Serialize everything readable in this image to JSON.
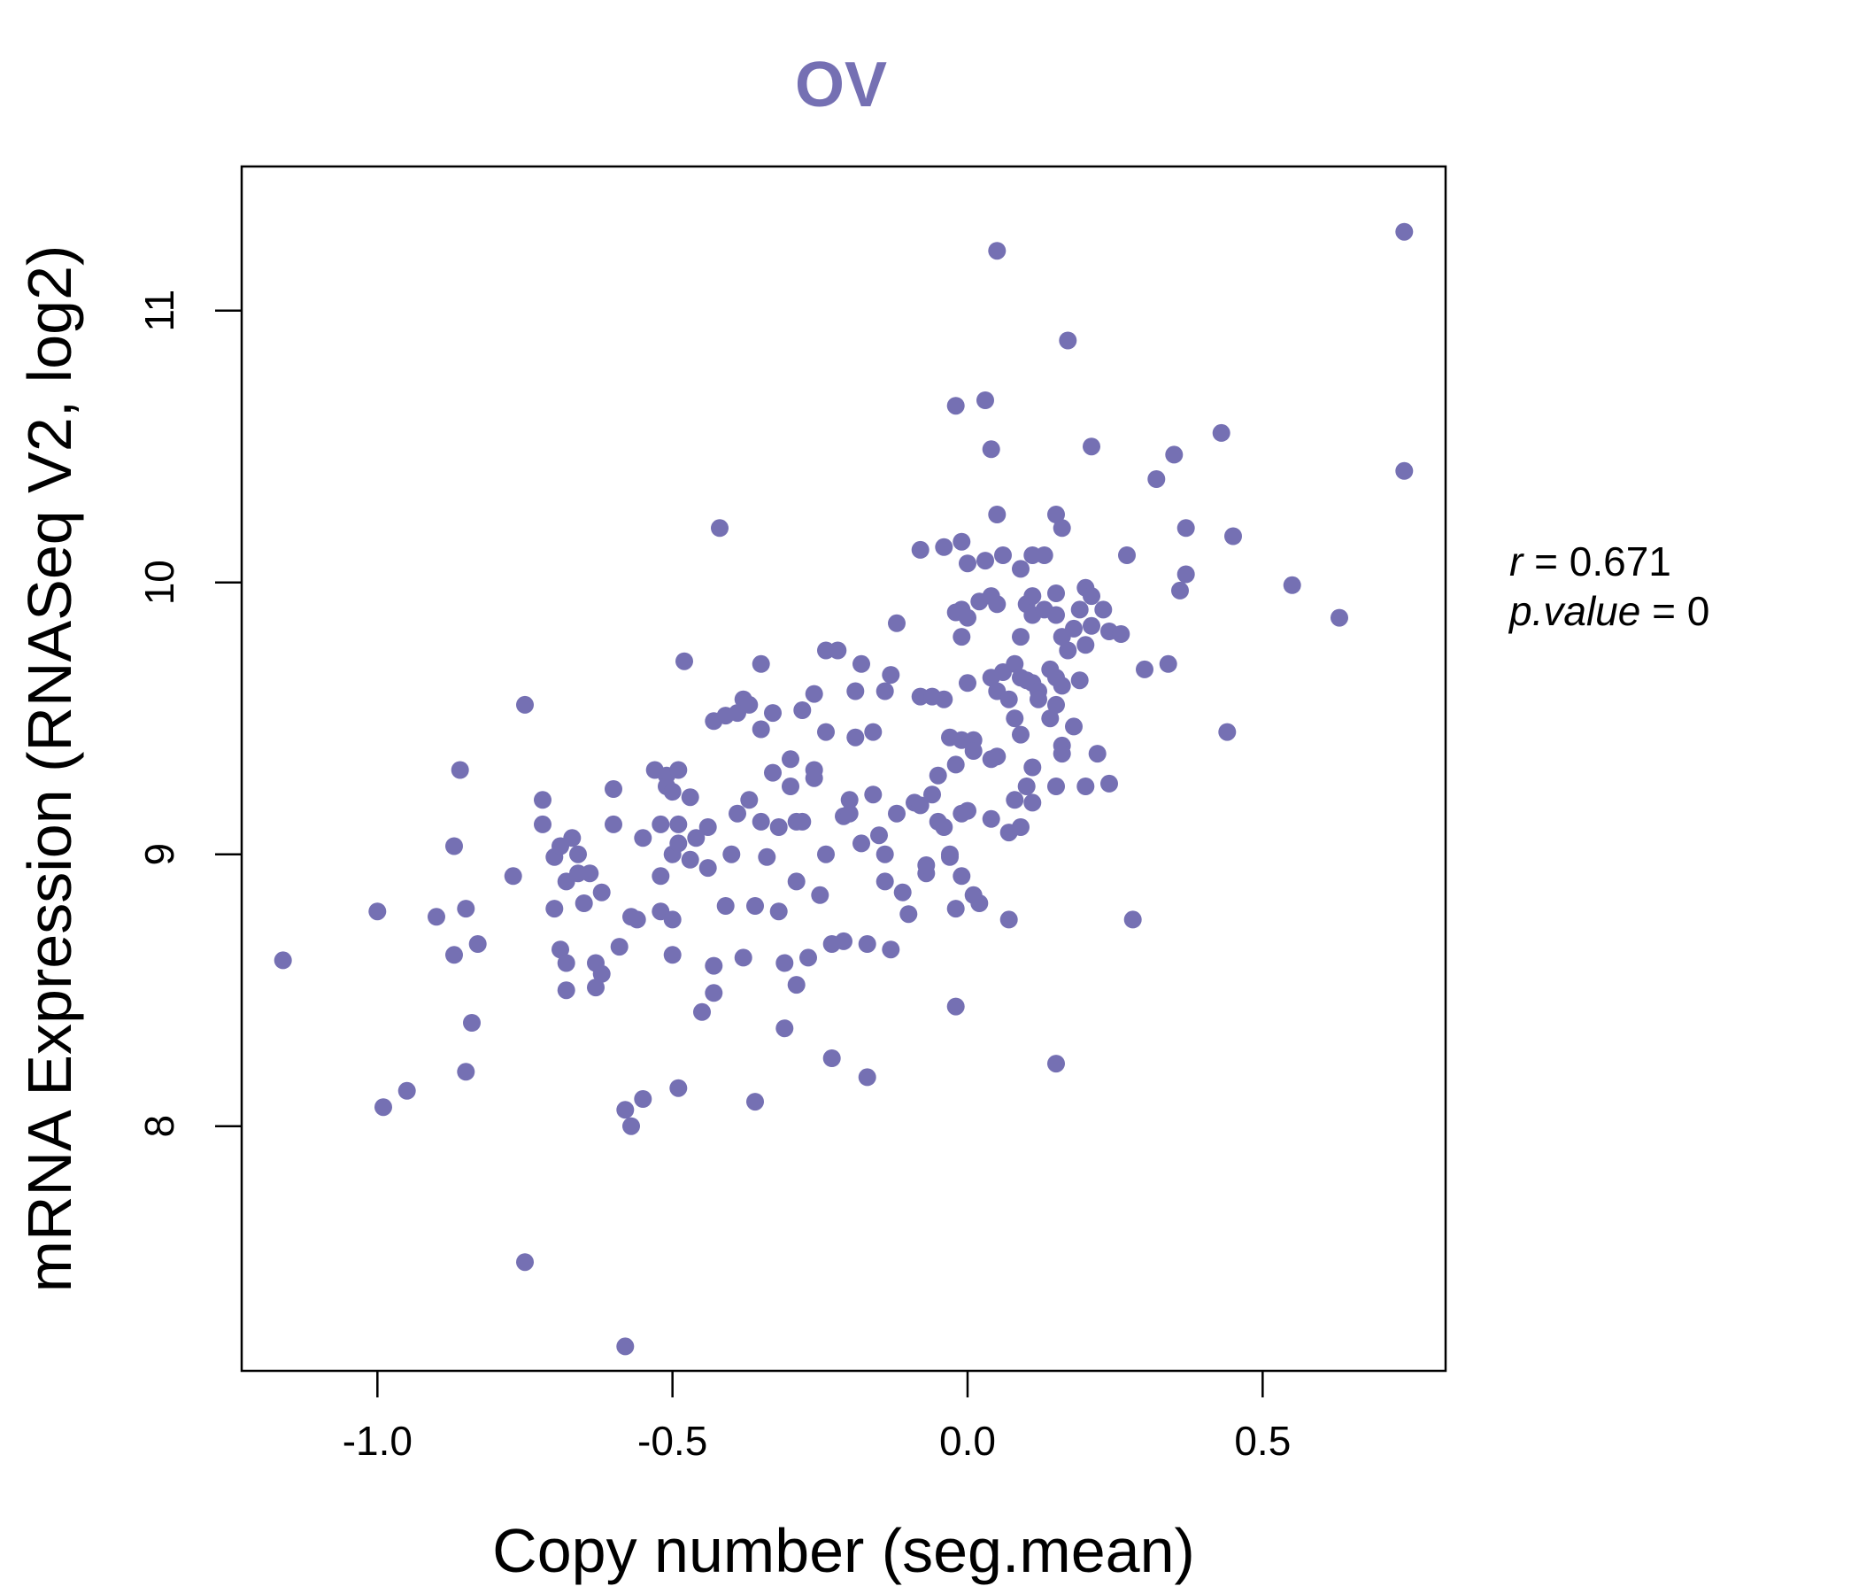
{
  "chart_data": {
    "type": "scatter",
    "title": "OV",
    "xlabel": "Copy number (seg.mean)",
    "ylabel": "mRNA Expression (RNASeq V2, log2)",
    "xlim": [
      -1.23,
      0.81
    ],
    "ylim": [
      7.1,
      11.53
    ],
    "x_ticks": [
      -1.0,
      -0.5,
      0.0,
      0.5
    ],
    "x_tick_labels": [
      "-1.0",
      "-0.5",
      "0.0",
      "0.5"
    ],
    "y_ticks": [
      8,
      9,
      10,
      11
    ],
    "y_tick_labels": [
      "8",
      "9",
      "10",
      "11"
    ],
    "grid": false,
    "legend": "none",
    "point_color": "#7570b3",
    "title_color": "#7570b3",
    "annotation": {
      "r_label": "r",
      "r_value": "0.671",
      "p_label": "p.value",
      "p_value": "0"
    },
    "points": [
      [
        -1.16,
        8.61
      ],
      [
        -1.0,
        8.79
      ],
      [
        -0.99,
        8.07
      ],
      [
        -0.95,
        8.13
      ],
      [
        -0.9,
        8.77
      ],
      [
        -0.87,
        9.03
      ],
      [
        -0.87,
        8.63
      ],
      [
        -0.86,
        9.31
      ],
      [
        -0.85,
        8.8
      ],
      [
        -0.85,
        8.2
      ],
      [
        -0.84,
        8.38
      ],
      [
        -0.83,
        8.67
      ],
      [
        -0.77,
        8.92
      ],
      [
        -0.75,
        9.55
      ],
      [
        -0.75,
        7.5
      ],
      [
        -0.72,
        9.2
      ],
      [
        -0.72,
        9.11
      ],
      [
        -0.7,
        8.99
      ],
      [
        -0.7,
        8.8
      ],
      [
        -0.69,
        9.03
      ],
      [
        -0.69,
        8.65
      ],
      [
        -0.68,
        8.9
      ],
      [
        -0.68,
        8.6
      ],
      [
        -0.68,
        8.5
      ],
      [
        -0.67,
        9.06
      ],
      [
        -0.66,
        9.0
      ],
      [
        -0.66,
        8.93
      ],
      [
        -0.65,
        8.82
      ],
      [
        -0.64,
        8.93
      ],
      [
        -0.63,
        8.6
      ],
      [
        -0.63,
        8.51
      ],
      [
        -0.62,
        8.86
      ],
      [
        -0.62,
        8.56
      ],
      [
        -0.6,
        9.24
      ],
      [
        -0.6,
        9.11
      ],
      [
        -0.59,
        8.66
      ],
      [
        -0.58,
        8.06
      ],
      [
        -0.58,
        7.19
      ],
      [
        -0.57,
        8.77
      ],
      [
        -0.57,
        8.0
      ],
      [
        -0.56,
        8.76
      ],
      [
        -0.55,
        9.06
      ],
      [
        -0.55,
        8.1
      ],
      [
        -0.53,
        9.31
      ],
      [
        -0.52,
        9.11
      ],
      [
        -0.52,
        8.92
      ],
      [
        -0.52,
        8.79
      ],
      [
        -0.51,
        9.29
      ],
      [
        -0.51,
        9.25
      ],
      [
        -0.5,
        9.23
      ],
      [
        -0.5,
        9.0
      ],
      [
        -0.5,
        8.76
      ],
      [
        -0.5,
        8.63
      ],
      [
        -0.49,
        9.31
      ],
      [
        -0.49,
        9.11
      ],
      [
        -0.49,
        9.04
      ],
      [
        -0.49,
        8.14
      ],
      [
        -0.48,
        9.71
      ],
      [
        -0.47,
        9.21
      ],
      [
        -0.47,
        8.98
      ],
      [
        -0.46,
        9.06
      ],
      [
        -0.45,
        8.42
      ],
      [
        -0.44,
        9.1
      ],
      [
        -0.44,
        8.95
      ],
      [
        -0.43,
        8.59
      ],
      [
        -0.43,
        8.49
      ],
      [
        -0.43,
        9.49
      ],
      [
        -0.42,
        10.2
      ],
      [
        -0.41,
        9.51
      ],
      [
        -0.41,
        8.81
      ],
      [
        -0.4,
        9.0
      ],
      [
        -0.39,
        9.52
      ],
      [
        -0.39,
        9.15
      ],
      [
        -0.38,
        8.62
      ],
      [
        -0.38,
        9.57
      ],
      [
        -0.37,
        9.2
      ],
      [
        -0.37,
        9.55
      ],
      [
        -0.36,
        8.81
      ],
      [
        -0.36,
        8.09
      ],
      [
        -0.35,
        9.7
      ],
      [
        -0.35,
        9.46
      ],
      [
        -0.35,
        9.12
      ],
      [
        -0.34,
        8.99
      ],
      [
        -0.33,
        9.52
      ],
      [
        -0.33,
        9.3
      ],
      [
        -0.32,
        9.1
      ],
      [
        -0.32,
        8.79
      ],
      [
        -0.31,
        8.6
      ],
      [
        -0.31,
        8.36
      ],
      [
        -0.3,
        9.25
      ],
      [
        -0.3,
        9.35
      ],
      [
        -0.29,
        9.12
      ],
      [
        -0.29,
        8.9
      ],
      [
        -0.29,
        8.52
      ],
      [
        -0.28,
        9.53
      ],
      [
        -0.28,
        9.12
      ],
      [
        -0.27,
        8.62
      ],
      [
        -0.26,
        9.59
      ],
      [
        -0.26,
        9.31
      ],
      [
        -0.26,
        9.28
      ],
      [
        -0.25,
        8.85
      ],
      [
        -0.24,
        9.75
      ],
      [
        -0.24,
        9.45
      ],
      [
        -0.24,
        9.0
      ],
      [
        -0.23,
        8.67
      ],
      [
        -0.23,
        8.25
      ],
      [
        -0.22,
        9.75
      ],
      [
        -0.21,
        9.14
      ],
      [
        -0.21,
        8.68
      ],
      [
        -0.2,
        9.2
      ],
      [
        -0.2,
        9.15
      ],
      [
        -0.19,
        9.43
      ],
      [
        -0.19,
        9.6
      ],
      [
        -0.18,
        9.7
      ],
      [
        -0.18,
        9.04
      ],
      [
        -0.17,
        8.67
      ],
      [
        -0.17,
        8.18
      ],
      [
        -0.16,
        9.45
      ],
      [
        -0.16,
        9.22
      ],
      [
        -0.15,
        9.07
      ],
      [
        -0.14,
        9.6
      ],
      [
        -0.14,
        9.0
      ],
      [
        -0.14,
        8.9
      ],
      [
        -0.13,
        9.66
      ],
      [
        -0.13,
        8.65
      ],
      [
        -0.12,
        9.85
      ],
      [
        -0.12,
        9.15
      ],
      [
        -0.11,
        8.86
      ],
      [
        -0.1,
        8.78
      ],
      [
        -0.09,
        9.19
      ],
      [
        -0.08,
        10.12
      ],
      [
        -0.08,
        9.58
      ],
      [
        -0.08,
        9.18
      ],
      [
        -0.07,
        8.93
      ],
      [
        -0.07,
        8.96
      ],
      [
        -0.06,
        9.58
      ],
      [
        -0.06,
        9.22
      ],
      [
        -0.05,
        9.12
      ],
      [
        -0.05,
        9.29
      ],
      [
        -0.04,
        10.13
      ],
      [
        -0.04,
        9.57
      ],
      [
        -0.04,
        9.1
      ],
      [
        -0.03,
        9.0
      ],
      [
        -0.03,
        8.99
      ],
      [
        -0.03,
        9.43
      ],
      [
        -0.02,
        10.65
      ],
      [
        -0.02,
        9.89
      ],
      [
        -0.02,
        9.33
      ],
      [
        -0.02,
        8.8
      ],
      [
        -0.02,
        8.44
      ],
      [
        -0.01,
        10.15
      ],
      [
        -0.01,
        9.9
      ],
      [
        -0.01,
        9.8
      ],
      [
        -0.01,
        9.42
      ],
      [
        -0.01,
        9.15
      ],
      [
        -0.01,
        8.92
      ],
      [
        0.0,
        10.07
      ],
      [
        0.0,
        9.87
      ],
      [
        0.0,
        9.63
      ],
      [
        0.0,
        9.16
      ],
      [
        0.01,
        9.42
      ],
      [
        0.01,
        9.38
      ],
      [
        0.01,
        8.85
      ],
      [
        0.02,
        9.93
      ],
      [
        0.02,
        8.82
      ],
      [
        0.03,
        10.67
      ],
      [
        0.03,
        10.08
      ],
      [
        0.04,
        10.49
      ],
      [
        0.04,
        9.95
      ],
      [
        0.04,
        9.65
      ],
      [
        0.04,
        9.35
      ],
      [
        0.04,
        9.13
      ],
      [
        0.05,
        11.22
      ],
      [
        0.05,
        10.25
      ],
      [
        0.05,
        9.92
      ],
      [
        0.05,
        9.6
      ],
      [
        0.05,
        9.36
      ],
      [
        0.06,
        10.1
      ],
      [
        0.06,
        9.67
      ],
      [
        0.07,
        9.57
      ],
      [
        0.07,
        9.08
      ],
      [
        0.07,
        8.76
      ],
      [
        0.08,
        9.7
      ],
      [
        0.08,
        9.5
      ],
      [
        0.08,
        9.2
      ],
      [
        0.09,
        10.05
      ],
      [
        0.09,
        9.8
      ],
      [
        0.09,
        9.65
      ],
      [
        0.09,
        9.44
      ],
      [
        0.09,
        9.1
      ],
      [
        0.1,
        9.92
      ],
      [
        0.1,
        9.64
      ],
      [
        0.1,
        9.25
      ],
      [
        0.11,
        10.1
      ],
      [
        0.11,
        9.95
      ],
      [
        0.11,
        9.88
      ],
      [
        0.11,
        9.63
      ],
      [
        0.11,
        9.32
      ],
      [
        0.11,
        9.19
      ],
      [
        0.12,
        9.6
      ],
      [
        0.12,
        9.57
      ],
      [
        0.13,
        10.1
      ],
      [
        0.13,
        9.9
      ],
      [
        0.14,
        9.68
      ],
      [
        0.14,
        9.5
      ],
      [
        0.15,
        10.25
      ],
      [
        0.15,
        9.96
      ],
      [
        0.15,
        9.88
      ],
      [
        0.15,
        9.65
      ],
      [
        0.15,
        9.55
      ],
      [
        0.15,
        9.25
      ],
      [
        0.15,
        8.23
      ],
      [
        0.16,
        10.2
      ],
      [
        0.16,
        9.8
      ],
      [
        0.16,
        9.62
      ],
      [
        0.16,
        9.4
      ],
      [
        0.16,
        9.37
      ],
      [
        0.17,
        10.89
      ],
      [
        0.17,
        9.75
      ],
      [
        0.18,
        9.83
      ],
      [
        0.18,
        9.47
      ],
      [
        0.19,
        9.9
      ],
      [
        0.19,
        9.64
      ],
      [
        0.2,
        9.98
      ],
      [
        0.2,
        9.77
      ],
      [
        0.2,
        9.25
      ],
      [
        0.21,
        10.5
      ],
      [
        0.21,
        9.95
      ],
      [
        0.21,
        9.84
      ],
      [
        0.22,
        9.37
      ],
      [
        0.23,
        9.9
      ],
      [
        0.24,
        9.82
      ],
      [
        0.24,
        9.26
      ],
      [
        0.26,
        9.81
      ],
      [
        0.27,
        10.1
      ],
      [
        0.28,
        8.76
      ],
      [
        0.3,
        9.68
      ],
      [
        0.32,
        10.38
      ],
      [
        0.34,
        9.7
      ],
      [
        0.35,
        10.47
      ],
      [
        0.36,
        9.97
      ],
      [
        0.37,
        10.2
      ],
      [
        0.37,
        10.03
      ],
      [
        0.43,
        10.55
      ],
      [
        0.44,
        9.45
      ],
      [
        0.45,
        10.17
      ],
      [
        0.55,
        9.99
      ],
      [
        0.63,
        9.87
      ],
      [
        0.74,
        11.29
      ],
      [
        0.74,
        10.41
      ]
    ]
  }
}
